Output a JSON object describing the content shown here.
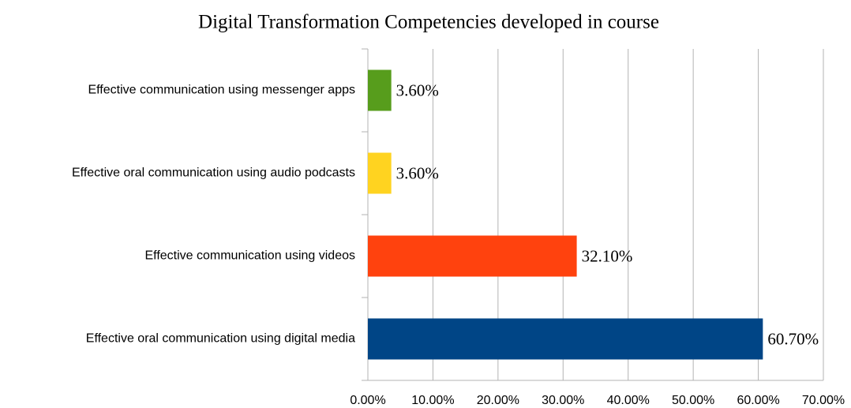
{
  "chart_data": {
    "type": "bar",
    "orientation": "horizontal",
    "title": "Digital Transformation Competencies developed in course",
    "categories": [
      "Effective communication using messenger apps",
      "Effective oral communication using audio podcasts",
      "Effective communication using videos",
      "Effective oral communication using digital media"
    ],
    "values": [
      3.6,
      3.6,
      32.1,
      60.7
    ],
    "value_labels": [
      "3.60%",
      "3.60%",
      "32.10%",
      "60.70%"
    ],
    "colors": [
      "#579d1c",
      "#ffd320",
      "#ff420e",
      "#004586"
    ],
    "xlim": [
      0,
      70
    ],
    "xticks": [
      {
        "value": 0,
        "label": "0.00%"
      },
      {
        "value": 10,
        "label": "10.00%"
      },
      {
        "value": 20,
        "label": "20.00%"
      },
      {
        "value": 30,
        "label": "30.00%"
      },
      {
        "value": 40,
        "label": "40.00%"
      },
      {
        "value": 50,
        "label": "50.00%"
      },
      {
        "value": 60,
        "label": "60.00%"
      },
      {
        "value": 70,
        "label": "70.00%"
      }
    ],
    "grid": true
  }
}
